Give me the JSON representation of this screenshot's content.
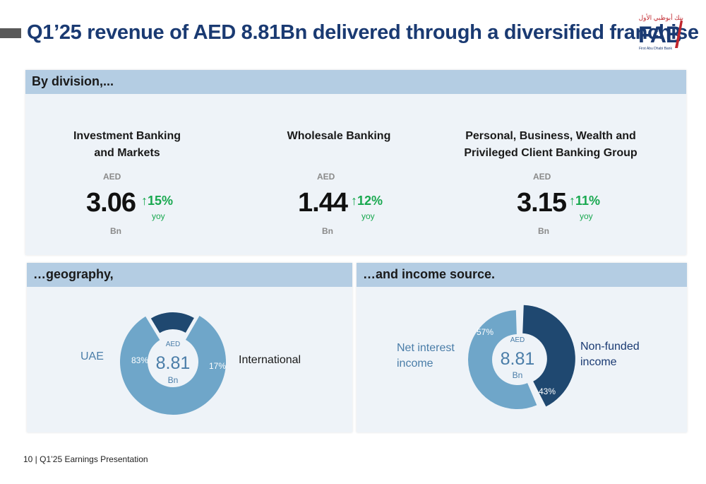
{
  "title": "Q1’25 revenue of AED 8.81Bn delivered through a diversified franchise",
  "logo": {
    "arabic": "بنك أبوظبي الأول",
    "name": "FAB",
    "subtitle": "First Abu Dhabi Bank"
  },
  "division": {
    "header": "By division,...",
    "items": [
      {
        "name_line1": "Investment Banking",
        "name_line2": "and Markets",
        "currency": "AED",
        "value": "3.06",
        "growth": "15%",
        "growth_label": "yoy",
        "unit": "Bn"
      },
      {
        "name_line1": "Wholesale Banking",
        "name_line2": "",
        "currency": "AED",
        "value": "1.44",
        "growth": "12%",
        "growth_label": "yoy",
        "unit": "Bn"
      },
      {
        "name_line1": "Personal, Business, Wealth and",
        "name_line2": "Privileged Client Banking Group",
        "currency": "AED",
        "value": "3.15",
        "growth": "11%",
        "growth_label": "yoy",
        "unit": "Bn"
      }
    ]
  },
  "geography": {
    "header": "…geography,",
    "center": {
      "currency": "AED",
      "value": "8.81",
      "unit": "Bn"
    },
    "segments": [
      {
        "label": "UAE",
        "pct_label": "83%",
        "value": 83,
        "color": "#6fa6c9"
      },
      {
        "label": "International",
        "pct_label": "17%",
        "value": 17,
        "color": "#1f4870"
      }
    ]
  },
  "income": {
    "header": "…and income source.",
    "center": {
      "currency": "AED",
      "value": "8.81",
      "unit": "Bn"
    },
    "segments": [
      {
        "label_line1": "Net interest",
        "label_line2": "income",
        "pct_label": "57%",
        "value": 57,
        "color": "#6fa6c9"
      },
      {
        "label_line1": "Non-funded",
        "label_line2": "income",
        "pct_label": "43%",
        "value": 43,
        "color": "#1f4870"
      }
    ]
  },
  "footer": "10 | Q1’25 Earnings Presentation",
  "colors": {
    "title": "#1a3a72",
    "header_bg": "#b4cde3",
    "panel_bg": "#eef3f8",
    "growth": "#18a84f",
    "accent_red": "#c0262d"
  }
}
